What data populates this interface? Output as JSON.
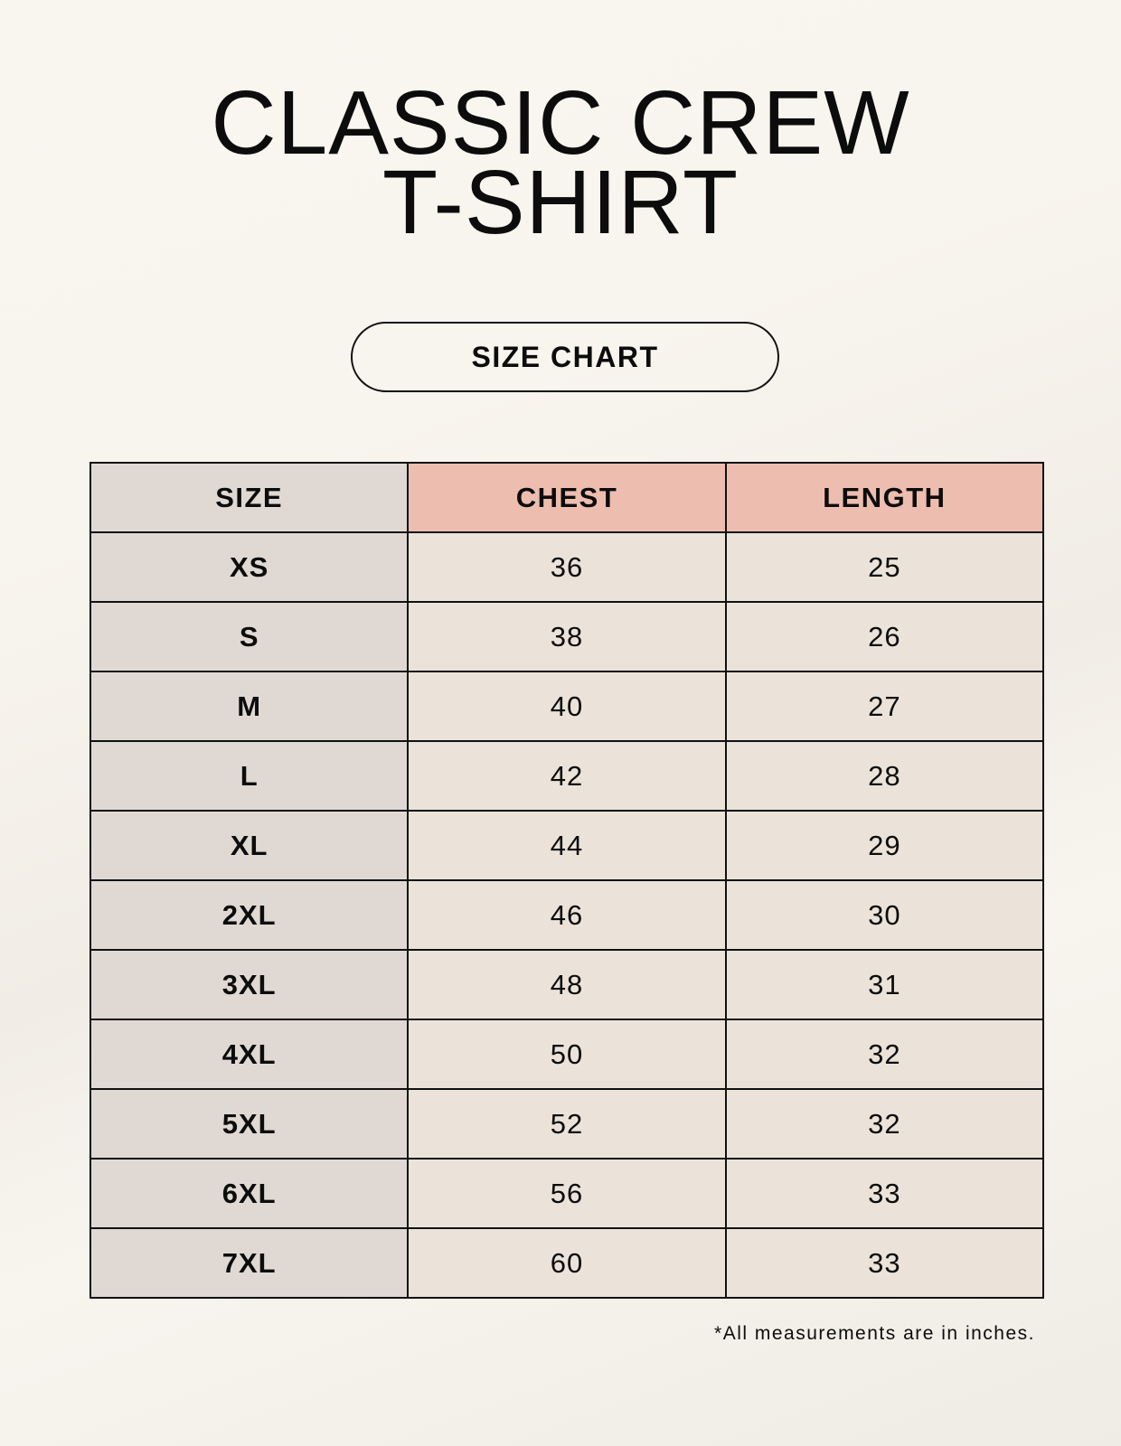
{
  "title_lines": [
    "CLASSIC CREW",
    "T-SHIRT"
  ],
  "badge": "SIZE CHART",
  "table": {
    "headers": [
      "SIZE",
      "CHEST",
      "LENGTH"
    ],
    "rows": [
      [
        "XS",
        "36",
        "25"
      ],
      [
        "S",
        "38",
        "26"
      ],
      [
        "M",
        "40",
        "27"
      ],
      [
        "L",
        "42",
        "28"
      ],
      [
        "XL",
        "44",
        "29"
      ],
      [
        "2XL",
        "46",
        "30"
      ],
      [
        "3XL",
        "48",
        "31"
      ],
      [
        "4XL",
        "50",
        "32"
      ],
      [
        "5XL",
        "52",
        "32"
      ],
      [
        "6XL",
        "56",
        "33"
      ],
      [
        "7XL",
        "60",
        "33"
      ]
    ]
  },
  "footnote": "*All measurements are in inches.",
  "colors": {
    "size_column": "#e0d9d3",
    "header_accent": "#edbdaf",
    "value_cells": "#ebe3d9"
  }
}
